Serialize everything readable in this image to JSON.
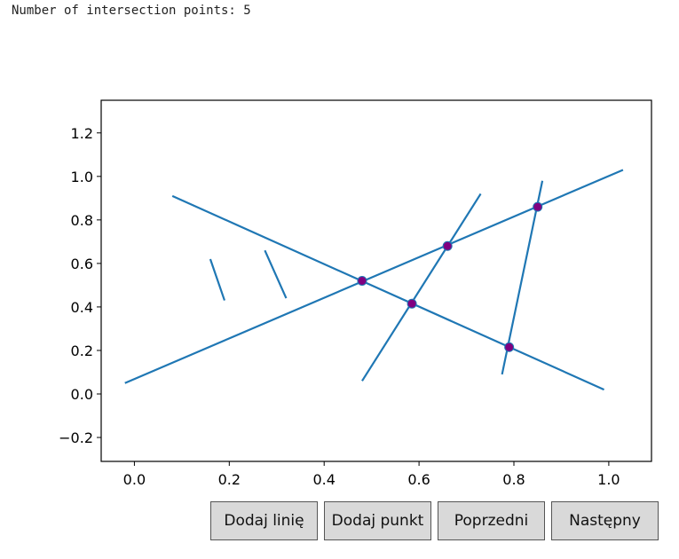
{
  "header": {
    "text": "Number of intersection points: 5"
  },
  "buttons": {
    "add_line": "Dodaj linię",
    "add_point": "Dodaj punkt",
    "previous": "Poprzedni",
    "next": "Następny"
  },
  "colors": {
    "line": "#1f77b4",
    "point": "#800080"
  },
  "chart_data": {
    "type": "line",
    "xlim": [
      -0.07,
      1.09
    ],
    "ylim": [
      -0.31,
      1.35
    ],
    "xticks": [
      0.0,
      0.2,
      0.4,
      0.6,
      0.8,
      1.0
    ],
    "xtick_labels": [
      "0.0",
      "0.2",
      "0.4",
      "0.6",
      "0.8",
      "1.0"
    ],
    "yticks": [
      -0.2,
      0.0,
      0.2,
      0.4,
      0.6,
      0.8,
      1.0,
      1.2
    ],
    "ytick_labels": [
      "−0.2",
      "0.0",
      "0.2",
      "0.4",
      "0.6",
      "0.8",
      "1.0",
      "1.2"
    ],
    "segments": [
      {
        "x": [
          -0.02,
          1.03
        ],
        "y": [
          0.05,
          1.03
        ]
      },
      {
        "x": [
          0.08,
          0.99
        ],
        "y": [
          0.91,
          0.02
        ]
      },
      {
        "x": [
          0.48,
          0.73
        ],
        "y": [
          0.06,
          0.92
        ]
      },
      {
        "x": [
          0.775,
          0.86
        ],
        "y": [
          0.09,
          0.98
        ]
      },
      {
        "x": [
          0.16,
          0.19
        ],
        "y": [
          0.62,
          0.43
        ]
      },
      {
        "x": [
          0.275,
          0.32
        ],
        "y": [
          0.66,
          0.44
        ]
      }
    ],
    "points": [
      {
        "x": 0.48,
        "y": 0.52
      },
      {
        "x": 0.585,
        "y": 0.415
      },
      {
        "x": 0.66,
        "y": 0.68
      },
      {
        "x": 0.79,
        "y": 0.215
      },
      {
        "x": 0.85,
        "y": 0.86
      }
    ]
  }
}
